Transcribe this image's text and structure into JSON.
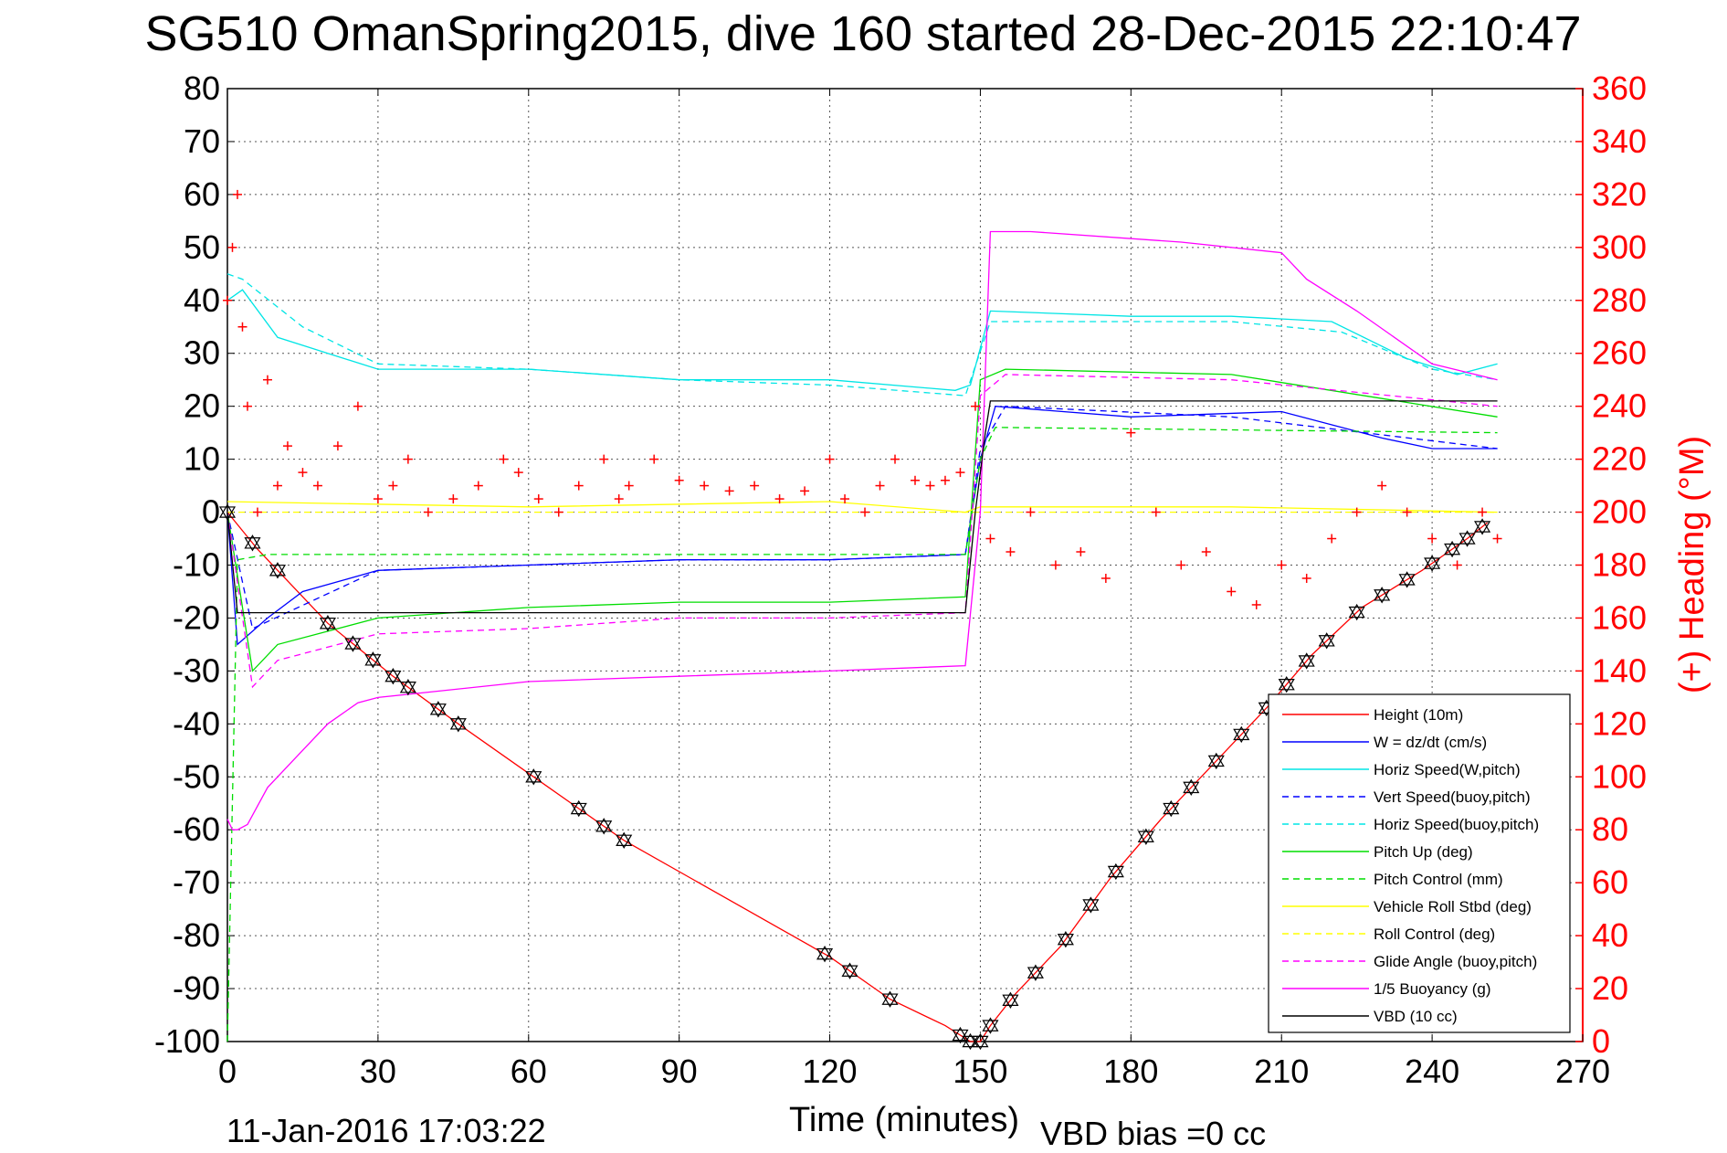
{
  "chart_data": {
    "type": "line",
    "title": "SG510 OmanSpring2015, dive 160 started 28-Dec-2015 22:10:47",
    "xlabel": "Time (minutes)",
    "ylabel": "",
    "y2label": "(+) Heading (°M)",
    "xlim": [
      0,
      270
    ],
    "ylim": [
      -100,
      80
    ],
    "y2lim": [
      0,
      360
    ],
    "xticks": [
      "0",
      "30",
      "60",
      "90",
      "120",
      "150",
      "180",
      "210",
      "240",
      "270"
    ],
    "yticks": [
      "80",
      "70",
      "60",
      "50",
      "40",
      "30",
      "20",
      "10",
      "0",
      "-10",
      "-20",
      "-30",
      "-40",
      "-50",
      "-60",
      "-70",
      "-80",
      "-90",
      "-100"
    ],
    "y2ticks": [
      "360",
      "340",
      "320",
      "300",
      "280",
      "260",
      "240",
      "220",
      "200",
      "180",
      "160",
      "140",
      "120",
      "100",
      "80",
      "60",
      "40",
      "20",
      "0"
    ],
    "grid": true,
    "legend_position": "bottom-right",
    "footer_left": "11-Jan-2016 17:03:22",
    "footer_right": "VBD bias =0 cc",
    "series": [
      {
        "name": "Height (10m)",
        "color": "#ff0000",
        "style": "solid",
        "x": [
          0,
          6,
          20,
          33,
          46,
          61,
          70,
          79,
          120,
          132,
          143,
          148,
          150,
          152,
          157,
          166,
          176,
          186,
          196,
          207,
          216,
          226,
          238,
          247,
          251
        ],
        "y": [
          0,
          -7,
          -21,
          -31,
          -40,
          -50,
          -56,
          -62,
          -84,
          -92,
          -97,
          -100,
          -100,
          -97,
          -91,
          -82,
          -69,
          -58,
          -48,
          -37,
          -27,
          -18,
          -11,
          -5,
          -2
        ]
      },
      {
        "name": "W = dz/dt (cm/s)",
        "color": "#0000ff",
        "style": "solid",
        "x": [
          0,
          2,
          8,
          15,
          30,
          60,
          90,
          120,
          147,
          150,
          153,
          180,
          210,
          230,
          240,
          253
        ],
        "y": [
          0,
          -25,
          -20,
          -15,
          -11,
          -10,
          -9,
          -9,
          -8,
          10,
          20,
          18,
          19,
          14,
          12,
          12
        ]
      },
      {
        "name": "Horiz Speed(W,pitch)",
        "color": "#00e5e5",
        "style": "solid",
        "x": [
          0,
          3,
          10,
          20,
          30,
          60,
          90,
          120,
          145,
          148,
          152,
          180,
          200,
          220,
          235,
          245,
          253
        ],
        "y": [
          40,
          42,
          33,
          30,
          27,
          27,
          25,
          25,
          23,
          24,
          38,
          37,
          37,
          36,
          29,
          26,
          28
        ]
      },
      {
        "name": "Vert Speed(buoy,pitch)",
        "color": "#0000ff",
        "style": "dashed",
        "x": [
          0,
          5,
          30,
          60,
          90,
          120,
          147,
          150,
          155,
          200,
          253
        ],
        "y": [
          0,
          -22,
          -11,
          -10,
          -9,
          -9,
          -8,
          12,
          20,
          18,
          12
        ]
      },
      {
        "name": "Horiz Speed(buoy,pitch)",
        "color": "#00e5e5",
        "style": "dashed",
        "x": [
          0,
          3,
          15,
          30,
          60,
          90,
          120,
          147,
          152,
          200,
          222,
          240,
          253
        ],
        "y": [
          45,
          44,
          35,
          28,
          27,
          25,
          24,
          22,
          36,
          36,
          34,
          27,
          25
        ]
      },
      {
        "name": "Pitch Up (deg)",
        "color": "#00dd00",
        "style": "solid",
        "x": [
          0,
          5,
          10,
          30,
          60,
          90,
          120,
          147,
          150,
          155,
          200,
          253
        ],
        "y": [
          0,
          -30,
          -25,
          -20,
          -18,
          -17,
          -17,
          -16,
          25,
          27,
          26,
          18
        ]
      },
      {
        "name": "Pitch Control (mm)",
        "color": "#00dd00",
        "style": "dashed",
        "x": [
          0,
          2,
          8,
          147,
          150,
          153,
          253
        ],
        "y": [
          -100,
          -9,
          -8,
          -8,
          10,
          16,
          15
        ]
      },
      {
        "name": "Vehicle Roll Stbd (deg)",
        "color": "#ffff00",
        "style": "solid",
        "x": [
          0,
          60,
          120,
          147,
          150,
          200,
          253
        ],
        "y": [
          2,
          1,
          2,
          0,
          1,
          1,
          0
        ]
      },
      {
        "name": "Roll Control (deg)",
        "color": "#ffff00",
        "style": "dashed",
        "x": [
          0,
          147,
          150,
          253
        ],
        "y": [
          0,
          0,
          0,
          0
        ]
      },
      {
        "name": "Glide Angle (buoy,pitch)",
        "color": "#ff00ff",
        "style": "dashed",
        "x": [
          0,
          5,
          10,
          30,
          60,
          90,
          120,
          147,
          150,
          155,
          200,
          253
        ],
        "y": [
          0,
          -33,
          -28,
          -23,
          -22,
          -20,
          -20,
          -19,
          22,
          26,
          25,
          20
        ]
      },
      {
        "name": "1/5 Buoyancy (g)",
        "color": "#ff00ff",
        "style": "solid",
        "x": [
          0,
          1,
          2,
          4,
          8,
          14,
          20,
          26,
          30,
          40,
          60,
          90,
          120,
          147,
          150,
          152,
          160,
          190,
          210,
          215,
          225,
          240,
          253
        ],
        "y": [
          -58,
          -60,
          -60,
          -59,
          -52,
          -46,
          -40,
          -36,
          -35,
          -34,
          -32,
          -31,
          -30,
          -29,
          0,
          53,
          53,
          51,
          49,
          44,
          38,
          28,
          25
        ]
      },
      {
        "name": "VBD (10 cc)",
        "color": "#000000",
        "style": "solid",
        "x": [
          0,
          2,
          147,
          149,
          151,
          152,
          253
        ],
        "y": [
          0,
          -19,
          -19,
          0,
          15,
          21,
          21
        ]
      }
    ],
    "heading_series": {
      "name": "(+) Heading",
      "color": "#ff0000",
      "marker": "+",
      "x": [
        0,
        1,
        2,
        3,
        4,
        6,
        8,
        10,
        12,
        15,
        18,
        22,
        26,
        30,
        33,
        36,
        40,
        45,
        50,
        55,
        58,
        62,
        66,
        70,
        75,
        78,
        80,
        85,
        90,
        95,
        100,
        105,
        110,
        115,
        120,
        123,
        127,
        130,
        133,
        137,
        140,
        143,
        146,
        149,
        152,
        156,
        160,
        165,
        170,
        175,
        180,
        185,
        190,
        195,
        200,
        205,
        210,
        215,
        220,
        225,
        230,
        235,
        240,
        245,
        250,
        253
      ],
      "y": [
        280,
        300,
        320,
        270,
        240,
        200,
        250,
        210,
        225,
        215,
        210,
        225,
        240,
        205,
        210,
        220,
        200,
        205,
        210,
        220,
        215,
        205,
        200,
        210,
        220,
        205,
        210,
        220,
        212,
        210,
        208,
        210,
        205,
        208,
        220,
        205,
        200,
        210,
        220,
        212,
        210,
        212,
        215,
        240,
        190,
        185,
        200,
        180,
        185,
        175,
        230,
        200,
        180,
        185,
        170,
        165,
        180,
        175,
        190,
        200,
        210,
        200,
        190,
        180,
        200,
        190
      ]
    },
    "height_markers_x": [
      0,
      5,
      10,
      20,
      25,
      29,
      33,
      36,
      42,
      46,
      61,
      70,
      75,
      79,
      119,
      124,
      132,
      146,
      148,
      150,
      152,
      156,
      161,
      167,
      172,
      177,
      183,
      188,
      192,
      197,
      202,
      207,
      211,
      215,
      219,
      225,
      230,
      235,
      240,
      244,
      247,
      250
    ]
  }
}
